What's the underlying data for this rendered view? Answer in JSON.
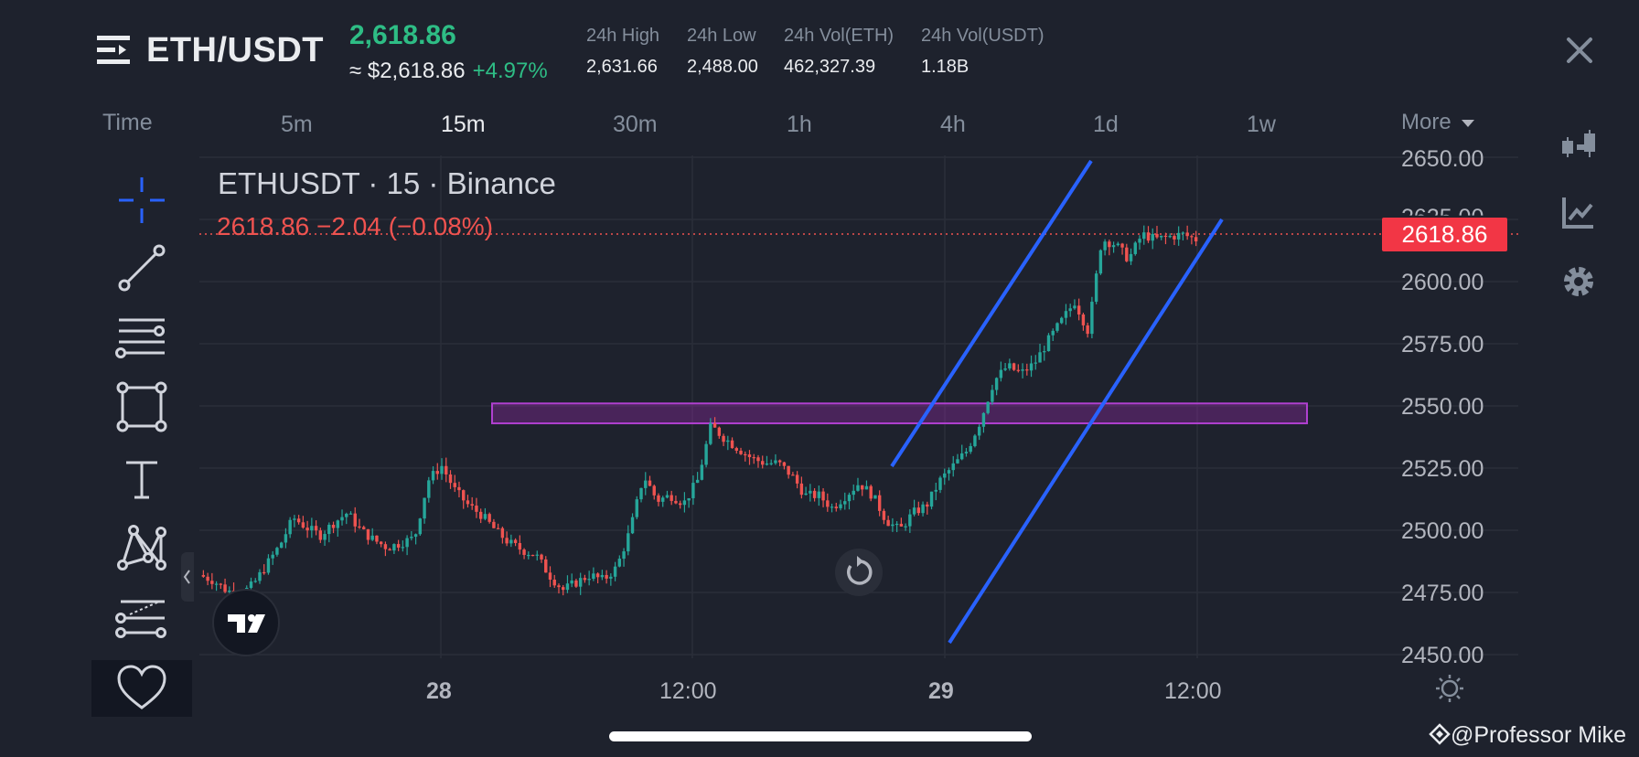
{
  "header": {
    "pair": "ETH/USDT",
    "last_price": "2,618.86",
    "usd_price": "≈ $2,618.86",
    "change_pct": "+4.97%",
    "stats": [
      {
        "label": "24h High",
        "value": "2,631.66"
      },
      {
        "label": "24h Low",
        "value": "2,488.00"
      },
      {
        "label": "24h Vol(ETH)",
        "value": "462,327.39"
      },
      {
        "label": "24h Vol(USDT)",
        "value": "1.18B"
      }
    ]
  },
  "timeframes": {
    "time_label": "Time",
    "items": [
      "5m",
      "15m",
      "30m",
      "1h",
      "4h",
      "1d",
      "1w"
    ],
    "active": "15m",
    "more_label": "More"
  },
  "chart": {
    "title": "ETHUSDT · 15 · Binance",
    "ohlc_line": "2618.86  −2.04 (−0.08%)",
    "current_price_tag": "2618.86",
    "price_ticks": [
      "2650.00",
      "2625.00",
      "2600.00",
      "2575.00",
      "2550.00",
      "2525.00",
      "2500.00",
      "2475.00",
      "2450.00"
    ],
    "time_ticks": [
      {
        "label": "28",
        "bold": true
      },
      {
        "label": "12:00",
        "bold": false
      },
      {
        "label": "29",
        "bold": true
      },
      {
        "label": "12:00",
        "bold": false
      }
    ]
  },
  "chart_data": {
    "type": "candlestick",
    "interval": "15m",
    "ylim": [
      2448,
      2651
    ],
    "current_price": 2618.86,
    "up_color": "#26a69a",
    "down_color": "#ef5350",
    "price_path": [
      2482,
      2480,
      2476,
      2474,
      2478,
      2486,
      2494,
      2505,
      2501,
      2498,
      2503,
      2507,
      2500,
      2496,
      2493,
      2495,
      2497,
      2520,
      2526,
      2516,
      2510,
      2506,
      2500,
      2495,
      2492,
      2490,
      2482,
      2476,
      2479,
      2482,
      2480,
      2485,
      2500,
      2522,
      2512,
      2514,
      2511,
      2520,
      2542,
      2537,
      2533,
      2529,
      2527,
      2527,
      2522,
      2514,
      2514,
      2509,
      2514,
      2519,
      2514,
      2504,
      2500,
      2507,
      2510,
      2520,
      2526,
      2532,
      2544,
      2560,
      2566,
      2563,
      2567,
      2576,
      2584,
      2592,
      2580,
      2617,
      2615,
      2609,
      2619,
      2617,
      2618,
      2619,
      2617
    ],
    "annotations": {
      "box_price_range": [
        2543,
        2551
      ],
      "box_color": "#9c27b0",
      "channel_color": "#2962ff"
    }
  },
  "tools": {
    "left": [
      "crosshair-icon",
      "trendline-icon",
      "fib-retracement-icon",
      "rectangle-icon",
      "text-icon",
      "pattern-icon",
      "prediction-icon",
      "favorites-heart-icon"
    ],
    "right": [
      "candle-type-icon",
      "indicators-icon",
      "settings-gear-icon"
    ]
  },
  "watermark": "@Professor Mike"
}
